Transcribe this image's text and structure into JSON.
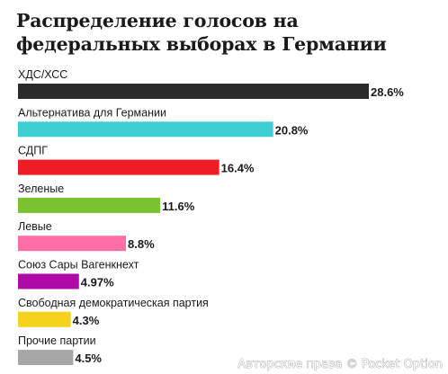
{
  "chart_data": {
    "type": "bar",
    "orientation": "horizontal",
    "title": "Распределение голосов на федеральных выборах в Германии",
    "xlabel": "",
    "ylabel": "",
    "xlim": [
      0,
      28.6
    ],
    "grid": false,
    "legend": "none",
    "categories": [
      "ХДС/ХСС",
      "Альтернатива для Германии",
      "СДПГ",
      "Зеленые",
      "Левые",
      "Союз Сары Вагенкнехт",
      "Свободная демократическая партия",
      "Прочие партии"
    ],
    "values": [
      28.6,
      20.8,
      16.4,
      11.6,
      8.8,
      4.97,
      4.3,
      4.5
    ],
    "value_labels": [
      "28.6%",
      "20.8%",
      "16.4%",
      "11.6%",
      "8.8%",
      "4.97%",
      "4.3%",
      "4.5%"
    ],
    "colors": [
      "#2b2b2b",
      "#3ecfd3",
      "#ee1c25",
      "#7ac230",
      "#ff6ea6",
      "#ad0aa8",
      "#f5d21b",
      "#a6a6a6"
    ]
  },
  "footer": {
    "copyright": "Авторские права © Pocket Option"
  }
}
